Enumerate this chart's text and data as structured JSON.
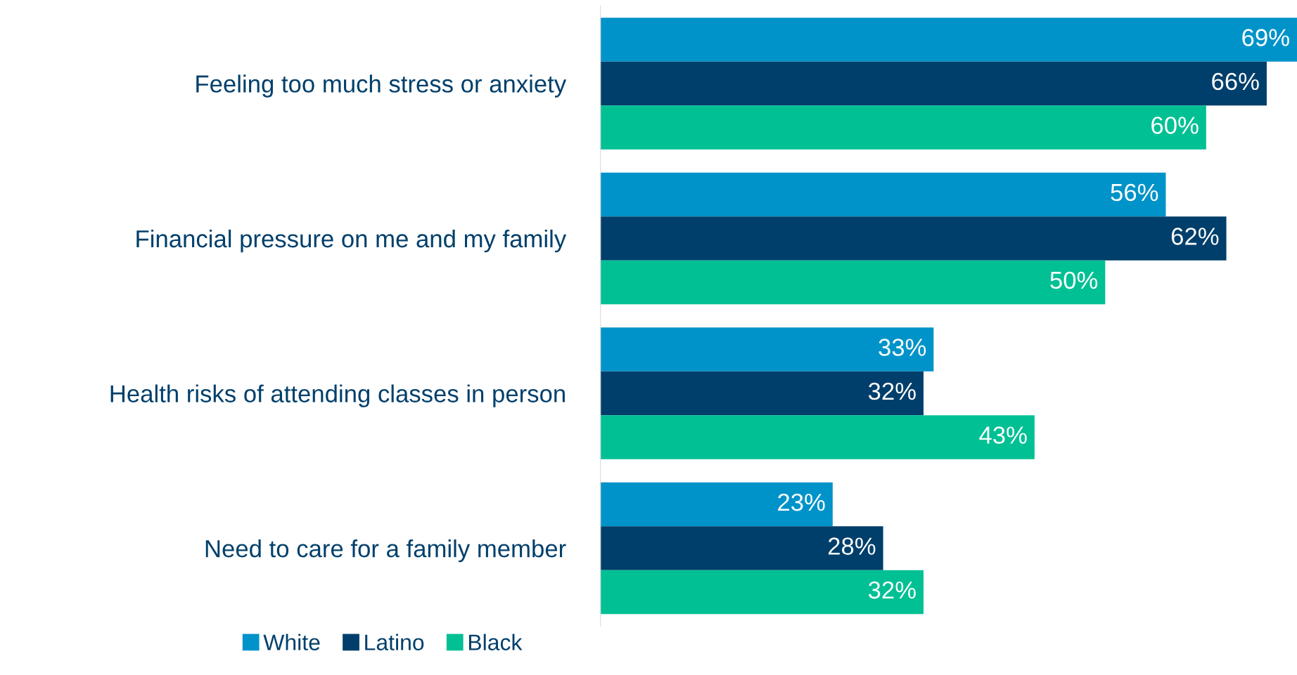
{
  "chart_data": {
    "type": "bar",
    "orientation": "horizontal",
    "categories": [
      "Feeling too much stress or anxiety",
      "Financial pressure on me and my family",
      "Health risks of attending classes in person",
      "Need to care for a family member"
    ],
    "series": [
      {
        "name": "White",
        "color": "#0093c9",
        "values": [
          69,
          56,
          33,
          23
        ],
        "value_labels": [
          "69%",
          "56%",
          "33%",
          "23%"
        ]
      },
      {
        "name": "Latino",
        "color": "#003f6b",
        "values": [
          66,
          62,
          32,
          28
        ],
        "value_labels": [
          "66%",
          "62%",
          "32%",
          "28%"
        ]
      },
      {
        "name": "Black",
        "color": "#00c094",
        "values": [
          60,
          50,
          43,
          32
        ],
        "value_labels": [
          "60%",
          "50%",
          "43%",
          "32%"
        ]
      }
    ],
    "legend": "bottom",
    "grid": false
  }
}
